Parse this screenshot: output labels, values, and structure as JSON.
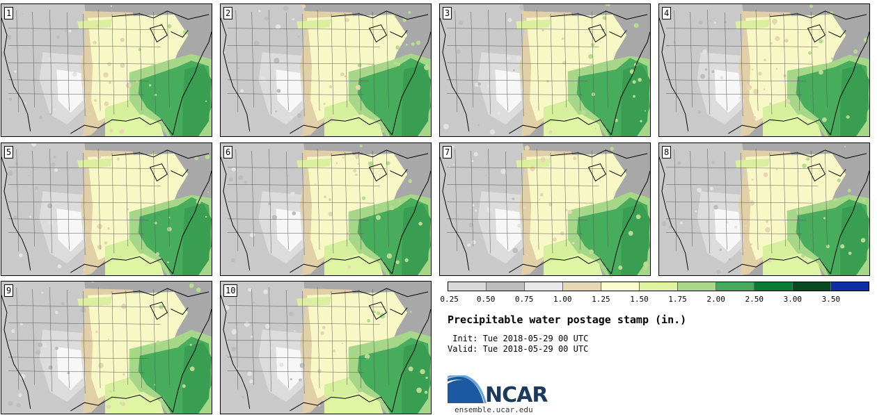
{
  "panels": [
    {
      "label": "1"
    },
    {
      "label": "2"
    },
    {
      "label": "3"
    },
    {
      "label": "4"
    },
    {
      "label": "5"
    },
    {
      "label": "6"
    },
    {
      "label": "7"
    },
    {
      "label": "8"
    },
    {
      "label": "9"
    },
    {
      "label": "10"
    }
  ],
  "colorbar": {
    "colors": [
      "#d9d9d9",
      "#bdbdbd",
      "#e8e8e8",
      "#e6d6b2",
      "#fbfbcb",
      "#dff2a0",
      "#a8d88a",
      "#45ab5c",
      "#0b7a35",
      "#064a22",
      "#0e2ea6"
    ],
    "ticks": [
      "0.25",
      "0.50",
      "0.75",
      "1.00",
      "1.25",
      "1.50",
      "1.75",
      "2.00",
      "2.50",
      "3.00",
      "3.50"
    ]
  },
  "title": "Precipitable water postage stamp (in.)",
  "init": " Init: Tue 2018-05-29 00 UTC",
  "valid": "Valid: Tue 2018-05-29 00 UTC",
  "logo": {
    "text": "NCAR",
    "url": "ensemble.ucar.edu",
    "color": "#1b5aa0"
  }
}
